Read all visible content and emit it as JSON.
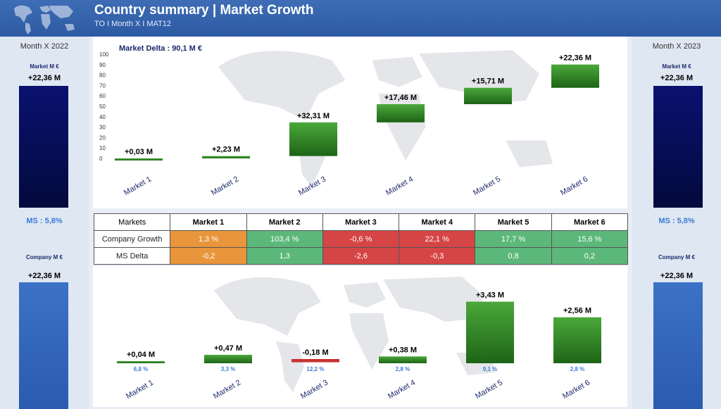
{
  "header": {
    "title": "Country summary | Market Growth",
    "subtitle": "TO I Month X I MAT12"
  },
  "left_panel": {
    "period": "Month X 2022",
    "market_label": "Market M €",
    "market_value": "+22,36 M",
    "ms": "MS : 5,8%",
    "company_label": "Company M €",
    "company_value": "+22,36 M"
  },
  "right_panel": {
    "period": "Month X 2023",
    "market_label": "Market M €",
    "market_value": "+22,36 M",
    "ms": "MS : 5,8%",
    "company_label": "Company M €",
    "company_value": "+22,36 M"
  },
  "table": {
    "corner": "Markets",
    "columns": [
      "Market 1",
      "Market 2",
      "Market 3",
      "Market 4",
      "Market 5",
      "Market 6"
    ],
    "rows": [
      {
        "label": "Company Growth",
        "values": [
          "1,3 %",
          "103,4 %",
          "-0,6 %",
          "22,1 %",
          "17,7 %",
          "15,6 %"
        ],
        "colors": [
          "#e8953b",
          "#5cb87a",
          "#d64545",
          "#d64545",
          "#5cb87a",
          "#5cb87a"
        ]
      },
      {
        "label": "MS Delta",
        "values": [
          "-0,2",
          "1,3",
          "-2,6",
          "-0,3",
          "0,8",
          "0,2"
        ],
        "colors": [
          "#e8953b",
          "#5cb87a",
          "#d64545",
          "#d64545",
          "#5cb87a",
          "#5cb87a"
        ]
      }
    ]
  },
  "chart_data": [
    {
      "type": "bar",
      "title": "Market Delta : 90,1 M €",
      "categories": [
        "Market 1",
        "Market 2",
        "Market 3",
        "Market 4",
        "Market 5",
        "Market 6"
      ],
      "values": [
        0.03,
        2.23,
        32.31,
        17.46,
        15.71,
        22.36
      ],
      "labels": [
        "+0,03 M",
        "+2,23 M",
        "+32,31 M",
        "+17,46 M",
        "+15,71 M",
        "+22,36 M"
      ],
      "ylim": [
        0,
        100
      ],
      "yticks": [
        0,
        10,
        20,
        30,
        40,
        50,
        60,
        70,
        80,
        90,
        100
      ],
      "colors": {
        "positive": "#2e8a24",
        "negative": "#c83232"
      }
    },
    {
      "type": "bar",
      "title": "",
      "categories": [
        "Market 1",
        "Market 2",
        "Market 3",
        "Market 4",
        "Market 5",
        "Market 6"
      ],
      "values": [
        0.04,
        0.47,
        -0.18,
        0.38,
        3.43,
        2.56
      ],
      "labels": [
        "+0,04 M",
        "+0,47 M",
        "-0,18 M",
        "+0,38 M",
        "+3,43 M",
        "+2,56 M"
      ],
      "shares": [
        "6,8 %",
        "3,3 %",
        "12,2 %",
        "2,8 %",
        "9,1 %",
        "2,8 %"
      ],
      "colors": {
        "positive": "#2e8a24",
        "negative": "#c83232",
        "share": "#3a7bd5"
      }
    }
  ]
}
